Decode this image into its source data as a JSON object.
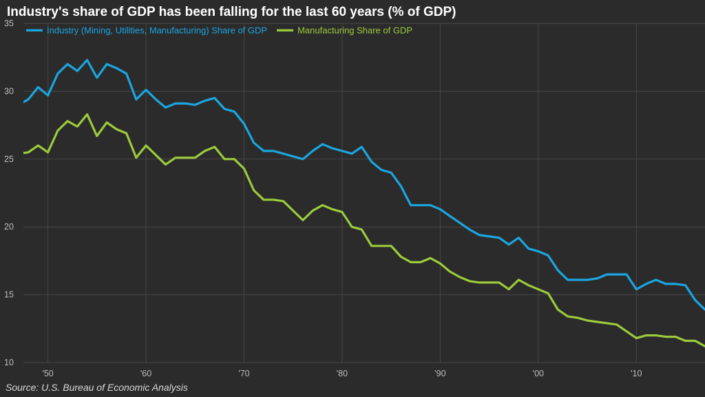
{
  "chart_data": {
    "type": "line",
    "title": "Industry's share of GDP has been falling for the last 60 years (% of GDP)",
    "source": "Source: U.S. Bureau of Economic Analysis",
    "xlabel": "",
    "ylabel": "",
    "xlim": [
      1947.5,
      2017
    ],
    "ylim": [
      10,
      35
    ],
    "y_ticks": [
      10,
      15,
      20,
      25,
      30,
      35
    ],
    "x_ticks": [
      {
        "value": 1950,
        "label": "'50"
      },
      {
        "value": 1960,
        "label": "'60"
      },
      {
        "value": 1970,
        "label": "'70"
      },
      {
        "value": 1980,
        "label": "'80"
      },
      {
        "value": 1990,
        "label": "'90"
      },
      {
        "value": 2000,
        "label": "'00"
      },
      {
        "value": 2010,
        "label": "'10"
      }
    ],
    "grid": "vertical and horizontal",
    "legend_position": "top-left",
    "x": [
      1947,
      1948,
      1949,
      1950,
      1951,
      1952,
      1953,
      1954,
      1955,
      1956,
      1957,
      1958,
      1959,
      1960,
      1961,
      1962,
      1963,
      1964,
      1965,
      1966,
      1967,
      1968,
      1969,
      1970,
      1971,
      1972,
      1973,
      1974,
      1975,
      1976,
      1977,
      1978,
      1979,
      1980,
      1981,
      1982,
      1983,
      1984,
      1985,
      1986,
      1987,
      1988,
      1989,
      1990,
      1991,
      1992,
      1993,
      1994,
      1995,
      1996,
      1997,
      1998,
      1999,
      2000,
      2001,
      2002,
      2003,
      2004,
      2005,
      2006,
      2007,
      2008,
      2009,
      2010,
      2011,
      2012,
      2013,
      2014,
      2015,
      2016,
      2017
    ],
    "series": [
      {
        "name": "Industry (Mining, Utilities, Manufacturing) Share of GDP",
        "color": "#1ba6e0",
        "values": [
          29.0,
          29.4,
          30.3,
          29.7,
          31.3,
          32.0,
          31.5,
          32.3,
          31.0,
          32.0,
          31.7,
          31.3,
          29.4,
          30.1,
          29.4,
          28.8,
          29.1,
          29.1,
          29.0,
          29.3,
          29.5,
          28.7,
          28.5,
          27.6,
          26.2,
          25.6,
          25.6,
          25.4,
          25.2,
          25.0,
          25.6,
          26.1,
          25.8,
          25.6,
          25.4,
          25.9,
          24.8,
          24.2,
          24.0,
          23.0,
          21.6,
          21.6,
          21.6,
          21.3,
          20.8,
          20.3,
          19.8,
          19.4,
          19.3,
          19.2,
          18.7,
          19.2,
          18.4,
          18.2,
          17.9,
          16.8,
          16.1,
          16.1,
          16.1,
          16.2,
          16.5,
          16.5,
          16.5,
          15.4,
          15.8,
          16.1,
          15.8,
          15.8,
          15.7,
          14.6,
          13.9
        ]
      },
      {
        "name": "Manufacturing Share of GDP",
        "color": "#9ccb3b",
        "values": [
          25.4,
          25.5,
          26.0,
          25.5,
          27.1,
          27.8,
          27.4,
          28.3,
          26.7,
          27.7,
          27.2,
          26.9,
          25.1,
          26.0,
          25.3,
          24.6,
          25.1,
          25.1,
          25.1,
          25.6,
          25.9,
          25.0,
          25.0,
          24.3,
          22.7,
          22.0,
          22.0,
          21.9,
          21.2,
          20.5,
          21.2,
          21.6,
          21.3,
          21.1,
          20.0,
          19.8,
          18.6,
          18.6,
          18.6,
          17.8,
          17.4,
          17.4,
          17.7,
          17.3,
          16.7,
          16.3,
          16.0,
          15.9,
          15.9,
          15.9,
          15.4,
          16.1,
          15.7,
          15.4,
          15.1,
          13.9,
          13.4,
          13.3,
          13.1,
          13.0,
          12.9,
          12.8,
          12.3,
          11.8,
          12.0,
          12.0,
          11.9,
          11.9,
          11.6,
          11.6,
          11.2
        ]
      }
    ]
  }
}
